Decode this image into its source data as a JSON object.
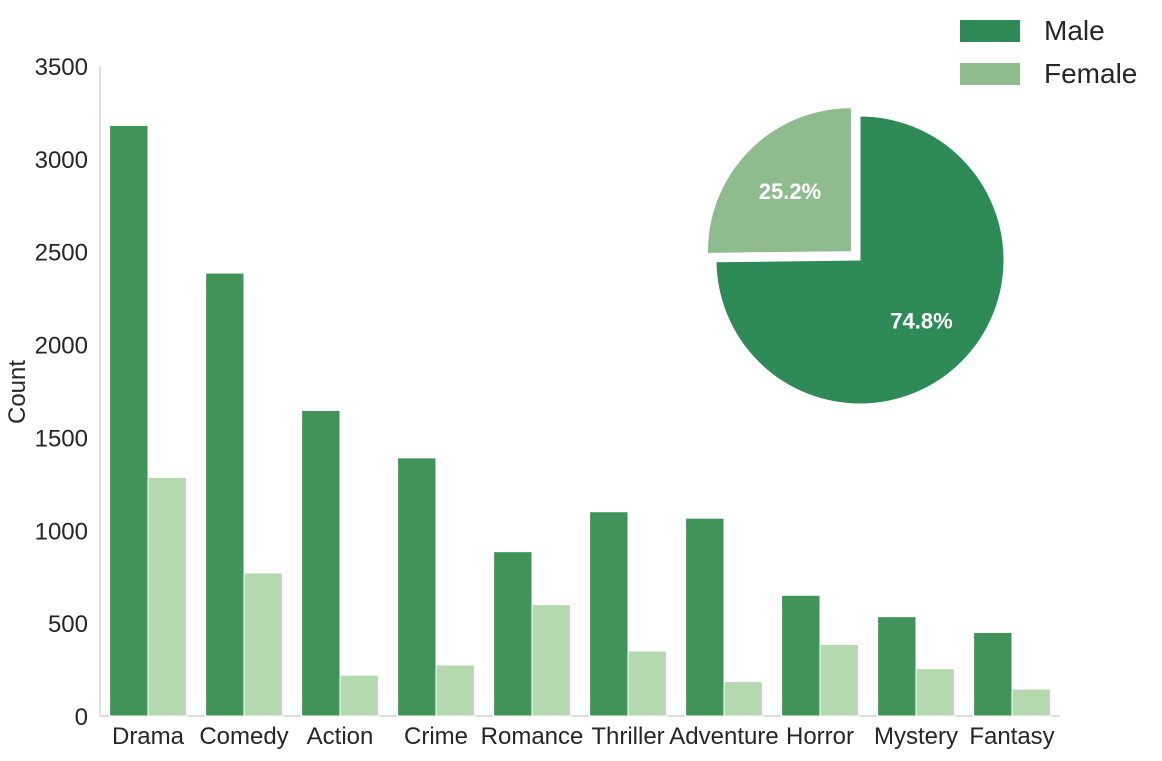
{
  "chart_data": [
    {
      "type": "bar",
      "categories": [
        "Drama",
        "Comedy",
        "Action",
        "Crime",
        "Romance",
        "Thriller",
        "Adventure",
        "Horror",
        "Mystery",
        "Fantasy"
      ],
      "series": [
        {
          "name": "Male",
          "color": "#41935a",
          "values": [
            3180,
            2385,
            1645,
            1390,
            885,
            1100,
            1065,
            650,
            535,
            450
          ]
        },
        {
          "name": "Female",
          "color": "#b4d9af",
          "values": [
            1285,
            770,
            220,
            275,
            600,
            350,
            185,
            385,
            255,
            145
          ]
        }
      ],
      "xlabel": "",
      "ylabel": "Count",
      "ylim": [
        0,
        3500
      ],
      "yticks": [
        "0",
        "500",
        "1000",
        "1500",
        "2000",
        "2500",
        "3000",
        "3500"
      ],
      "grid": false
    },
    {
      "type": "pie",
      "labels": [
        "Male",
        "Female"
      ],
      "values": [
        74.8,
        25.2
      ],
      "value_labels": [
        "74.8%",
        "25.2%"
      ],
      "colors": [
        "#2e8b57",
        "#8fbc8f"
      ],
      "exploded": "Female",
      "legend": {
        "placement": "top-right",
        "entries": [
          "Male",
          "Female"
        ]
      }
    }
  ]
}
